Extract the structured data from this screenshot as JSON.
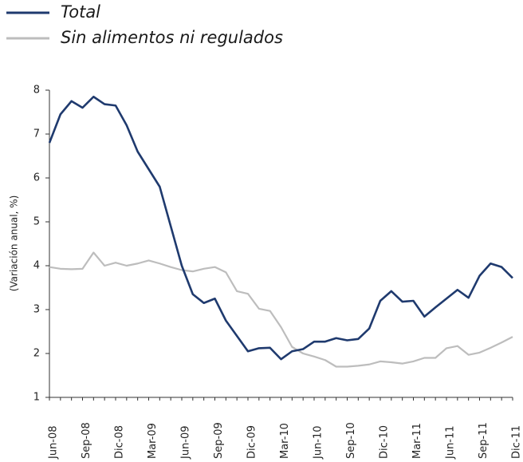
{
  "chart_data": {
    "type": "line",
    "ylabel": "(Variación anual, %)",
    "categories": [
      "Jun-08",
      null,
      null,
      "Sep-08",
      null,
      null,
      "Dic-08",
      null,
      null,
      "Mar-09",
      null,
      null,
      "Jun-09",
      null,
      null,
      "Sep-09",
      null,
      null,
      "Dic-09",
      null,
      null,
      "Mar-10",
      null,
      null,
      "Jun-10",
      null,
      null,
      "Sep-10",
      null,
      null,
      "Dic-10",
      null,
      null,
      "Mar-11",
      null,
      null,
      "Jun-11",
      null,
      null,
      "Sep-11",
      null,
      null,
      "Dic-11"
    ],
    "series": [
      {
        "name": "Total",
        "color": "#1f3a6e",
        "values": [
          6.8,
          7.45,
          7.75,
          7.6,
          7.85,
          7.68,
          7.65,
          7.2,
          6.6,
          6.2,
          5.8,
          4.9,
          4.0,
          3.35,
          3.15,
          3.25,
          2.75,
          2.4,
          2.05,
          2.12,
          2.13,
          1.87,
          2.05,
          2.1,
          2.27,
          2.27,
          2.35,
          2.3,
          2.33,
          2.57,
          3.2,
          3.42,
          3.18,
          3.2,
          2.84,
          3.05,
          3.25,
          3.45,
          3.27,
          3.77,
          4.05,
          3.97,
          3.72
        ]
      },
      {
        "name": "Sin alimentos ni regulados",
        "color": "#bdbdbd",
        "values": [
          3.97,
          3.93,
          3.92,
          3.93,
          4.3,
          4.0,
          4.07,
          4.0,
          4.05,
          4.12,
          4.05,
          3.97,
          3.9,
          3.87,
          3.93,
          3.97,
          3.85,
          3.42,
          3.36,
          3.02,
          2.97,
          2.6,
          2.15,
          2.0,
          1.93,
          1.85,
          1.7,
          1.7,
          1.72,
          1.75,
          1.82,
          1.8,
          1.77,
          1.82,
          1.9,
          1.9,
          2.12,
          2.17,
          1.97,
          2.02,
          2.13,
          2.25,
          2.38
        ]
      }
    ],
    "ylim": [
      1,
      8
    ],
    "yticks": [
      1,
      2,
      3,
      4,
      5,
      6,
      7,
      8
    ],
    "grid": false,
    "legend": "top-left"
  }
}
